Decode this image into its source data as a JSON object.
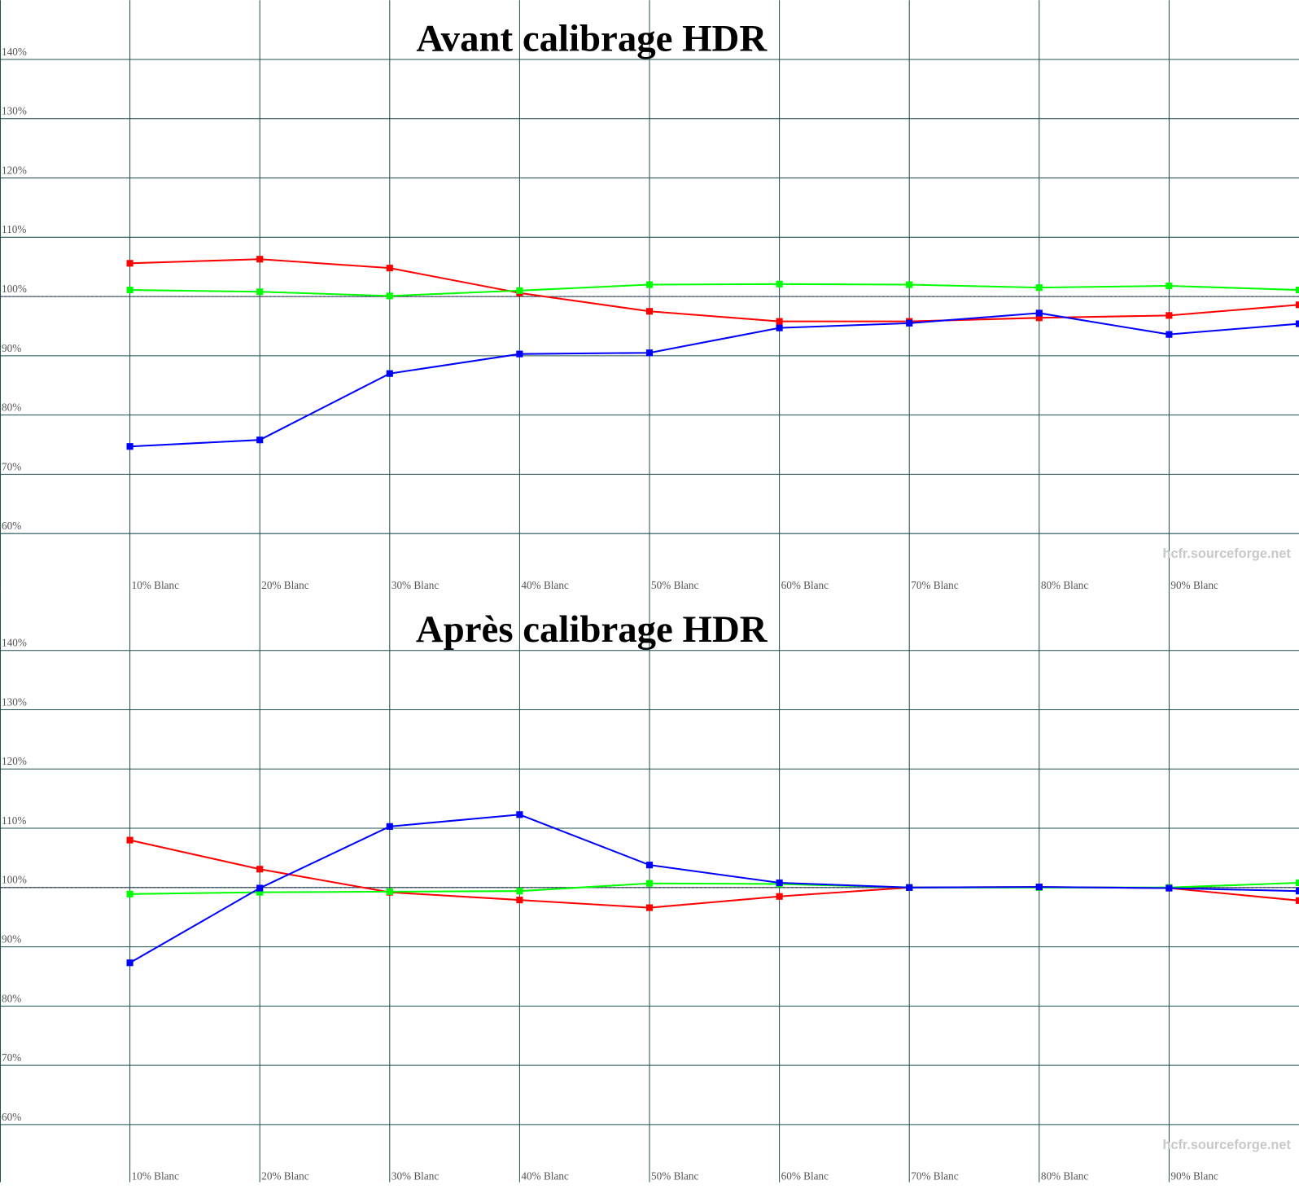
{
  "chart_data": [
    {
      "type": "line",
      "title": "Avant calibrage HDR",
      "watermark": "hcfr.sourceforge.net",
      "categories": [
        "10% Blanc",
        "20% Blanc",
        "30% Blanc",
        "40% Blanc",
        "50% Blanc",
        "60% Blanc",
        "70% Blanc",
        "80% Blanc",
        "90% Blanc",
        null
      ],
      "series": [
        {
          "color": "#ff0000",
          "values": [
            105.6,
            106.3,
            104.8,
            100.6,
            97.5,
            95.8,
            95.8,
            96.4,
            96.8,
            98.6
          ]
        },
        {
          "color": "#00ff00",
          "values": [
            101.1,
            100.8,
            100.1,
            101.0,
            102.0,
            102.1,
            102.0,
            101.5,
            101.8,
            101.1
          ]
        },
        {
          "color": "#0000ff",
          "values": [
            74.7,
            75.8,
            87.0,
            90.3,
            90.5,
            94.7,
            95.5,
            97.2,
            93.6,
            95.4
          ]
        }
      ],
      "ylim": [
        50,
        150
      ],
      "yticks": [
        {
          "value": 60,
          "label": "60%"
        },
        {
          "value": 70,
          "label": "70%"
        },
        {
          "value": 80,
          "label": "80%"
        },
        {
          "value": 90,
          "label": "90%"
        },
        {
          "value": 100,
          "label": "100%"
        },
        {
          "value": 110,
          "label": "110%"
        },
        {
          "value": 120,
          "label": "120%"
        },
        {
          "value": 130,
          "label": "130%"
        },
        {
          "value": 140,
          "label": "140%"
        }
      ],
      "reference_line": 100,
      "grid": true
    },
    {
      "type": "line",
      "title": "Après calibrage HDR",
      "watermark": "hcfr.sourceforge.net",
      "categories": [
        "10% Blanc",
        "20% Blanc",
        "30% Blanc",
        "40% Blanc",
        "50% Blanc",
        "60% Blanc",
        "70% Blanc",
        "80% Blanc",
        "90% Blanc",
        null
      ],
      "series": [
        {
          "color": "#ff0000",
          "values": [
            108.0,
            103.1,
            99.2,
            97.9,
            96.6,
            98.5,
            100.0,
            100.1,
            99.9,
            97.8
          ]
        },
        {
          "color": "#00ff00",
          "values": [
            98.9,
            99.2,
            99.3,
            99.4,
            100.7,
            100.6,
            100.0,
            100.0,
            100.0,
            100.8
          ]
        },
        {
          "color": "#0000ff",
          "values": [
            87.3,
            99.9,
            110.3,
            112.3,
            103.8,
            100.8,
            100.0,
            100.1,
            99.9,
            99.4
          ]
        }
      ],
      "ylim": [
        50,
        150
      ],
      "yticks": [
        {
          "value": 60,
          "label": "60%"
        },
        {
          "value": 70,
          "label": "70%"
        },
        {
          "value": 80,
          "label": "80%"
        },
        {
          "value": 90,
          "label": "90%"
        },
        {
          "value": 100,
          "label": "100%"
        },
        {
          "value": 110,
          "label": "110%"
        },
        {
          "value": 120,
          "label": "120%"
        },
        {
          "value": 130,
          "label": "130%"
        },
        {
          "value": 140,
          "label": "140%"
        }
      ],
      "reference_line": 100,
      "grid": true
    }
  ]
}
